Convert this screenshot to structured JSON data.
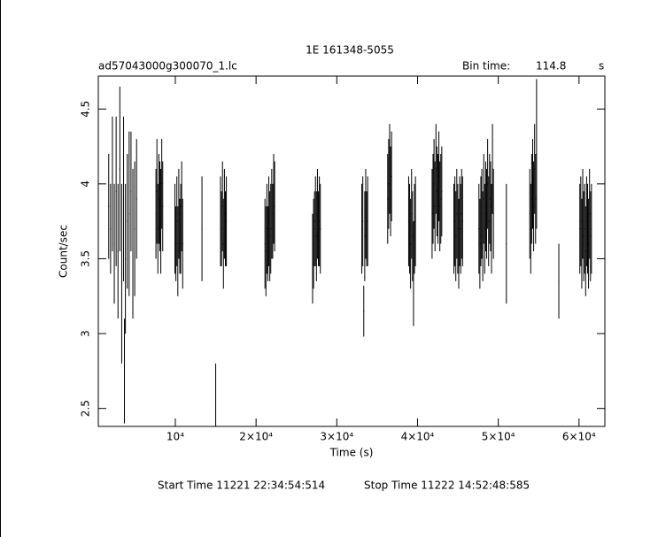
{
  "chart_data": {
    "type": "errorbar",
    "title": "1E 161348-5055",
    "file_name": "ad57043000g300070_1.lc",
    "bin_time_label": "Bin time:",
    "bin_time": 114.8,
    "bin_time_unit": "s",
    "xlabel": "Time (s)",
    "ylabel": "Count/sec",
    "start_time": "Start Time 11221 22:34:54:514",
    "stop_time": "Stop Time 11222 14:52:48:585",
    "color": "#000000",
    "xlim": [
      460,
      63200
    ],
    "ylim": [
      2.38,
      4.72
    ],
    "xticks": [
      {
        "value": 10000,
        "label": "10⁴"
      },
      {
        "value": 20000,
        "label": "2×10⁴"
      },
      {
        "value": 30000,
        "label": "3×10⁴"
      },
      {
        "value": 40000,
        "label": "4×10⁴"
      },
      {
        "value": 50000,
        "label": "5×10⁴"
      },
      {
        "value": 60000,
        "label": "6×10⁴"
      }
    ],
    "yticks": [
      2.5,
      3,
      3.5,
      4,
      4.5
    ],
    "x": [
      1750,
      1980,
      2210,
      2440,
      2670,
      2900,
      3130,
      3360,
      3590,
      3700,
      3820,
      4050,
      4280,
      4510,
      4740,
      4970,
      5200,
      7600,
      7720,
      7840,
      7960,
      8080,
      8200,
      8320,
      8440,
      9950,
      10070,
      10190,
      10310,
      10430,
      10550,
      10670,
      10790,
      10910,
      13300,
      15000,
      15600,
      15720,
      15840,
      15960,
      16080,
      16200,
      16320,
      21100,
      21220,
      21340,
      21460,
      21580,
      21700,
      21820,
      21940,
      22060,
      22180,
      22300,
      27000,
      27120,
      27240,
      27360,
      27480,
      27600,
      27720,
      27840,
      27960,
      33100,
      33220,
      33340,
      33460,
      33580,
      33700,
      33820,
      36300,
      36420,
      36540,
      36660,
      36780,
      38900,
      39020,
      39140,
      39260,
      39380,
      39500,
      39620,
      39740,
      41800,
      41920,
      42040,
      42160,
      42280,
      42400,
      42520,
      42640,
      42760,
      42880,
      43000,
      44500,
      44620,
      44740,
      44860,
      44980,
      45100,
      45220,
      45340,
      45460,
      45580,
      47600,
      47720,
      47840,
      47960,
      48080,
      48200,
      48320,
      48440,
      48560,
      48680,
      48800,
      48920,
      49040,
      49160,
      49280,
      49400,
      51000,
      53900,
      54020,
      54140,
      54260,
      54380,
      54500,
      54620,
      54740,
      57500,
      60100,
      60220,
      60340,
      60460,
      60580,
      60700,
      60820,
      60940,
      61060,
      61180,
      61300,
      61420,
      61540
    ],
    "values": [
      3.85,
      3.7,
      4.0,
      3.6,
      3.95,
      3.55,
      4.1,
      3.4,
      3.9,
      2.75,
      3.5,
      3.75,
      3.8,
      3.95,
      3.6,
      3.7,
      3.9,
      3.8,
      3.95,
      3.7,
      3.9,
      3.85,
      3.75,
      4.0,
      3.85,
      3.7,
      3.6,
      3.75,
      3.55,
      3.8,
      3.65,
      3.7,
      3.85,
      3.6,
      3.7,
      2.45,
      3.75,
      3.7,
      3.85,
      3.6,
      3.8,
      3.7,
      3.75,
      3.6,
      3.55,
      3.7,
      3.6,
      3.75,
      3.65,
      3.7,
      3.8,
      3.75,
      3.9,
      3.85,
      3.5,
      3.6,
      3.7,
      3.75,
      3.65,
      3.8,
      3.7,
      3.75,
      3.7,
      3.7,
      3.75,
      3.15,
      3.65,
      3.8,
      3.7,
      3.75,
      3.9,
      4.0,
      4.1,
      3.95,
      4.05,
      3.75,
      3.7,
      3.6,
      3.8,
      3.65,
      3.4,
      3.7,
      3.75,
      3.8,
      3.9,
      4.0,
      3.85,
      4.1,
      3.95,
      3.9,
      4.05,
      3.85,
      3.9,
      3.95,
      3.7,
      3.75,
      3.65,
      3.8,
      3.7,
      3.6,
      3.75,
      3.7,
      3.8,
      3.75,
      3.7,
      3.6,
      3.75,
      3.8,
      3.65,
      3.9,
      3.7,
      3.85,
      3.8,
      4.0,
      3.75,
      3.9,
      3.85,
      3.7,
      4.1,
      3.8,
      3.6,
      3.8,
      3.7,
      3.9,
      4.0,
      3.85,
      4.1,
      3.9,
      4.2,
      3.35,
      3.7,
      3.75,
      3.6,
      3.8,
      3.65,
      3.7,
      3.55,
      3.75,
      3.7,
      3.6,
      3.8,
      3.65,
      3.7
    ],
    "errors": [
      0.35,
      0.3,
      0.45,
      0.4,
      0.5,
      0.45,
      0.55,
      0.6,
      0.55,
      0.35,
      0.5,
      0.45,
      0.55,
      0.4,
      0.5,
      0.45,
      0.4,
      0.3,
      0.35,
      0.3,
      0.3,
      0.3,
      0.35,
      0.3,
      0.3,
      0.3,
      0.25,
      0.3,
      0.3,
      0.3,
      0.25,
      0.3,
      0.3,
      0.3,
      0.35,
      0.35,
      0.3,
      0.25,
      0.3,
      0.3,
      0.3,
      0.25,
      0.3,
      0.3,
      0.3,
      0.3,
      0.25,
      0.3,
      0.3,
      0.3,
      0.3,
      0.25,
      0.3,
      0.3,
      0.3,
      0.3,
      0.25,
      0.3,
      0.3,
      0.3,
      0.25,
      0.3,
      0.3,
      0.3,
      0.3,
      0.17,
      0.3,
      0.3,
      0.25,
      0.3,
      0.3,
      0.3,
      0.3,
      0.3,
      0.3,
      0.3,
      0.3,
      0.3,
      0.3,
      0.3,
      0.35,
      0.3,
      0.3,
      0.3,
      0.3,
      0.3,
      0.3,
      0.3,
      0.3,
      0.3,
      0.3,
      0.3,
      0.3,
      0.3,
      0.3,
      0.3,
      0.3,
      0.3,
      0.3,
      0.3,
      0.3,
      0.3,
      0.3,
      0.3,
      0.3,
      0.3,
      0.3,
      0.3,
      0.3,
      0.3,
      0.3,
      0.3,
      0.3,
      0.3,
      0.3,
      0.3,
      0.3,
      0.3,
      0.3,
      0.3,
      0.4,
      0.3,
      0.3,
      0.3,
      0.3,
      0.3,
      0.3,
      0.3,
      0.5,
      0.25,
      0.3,
      0.3,
      0.3,
      0.3,
      0.3,
      0.3,
      0.3,
      0.3,
      0.3,
      0.3,
      0.3,
      0.3,
      0.3
    ]
  }
}
